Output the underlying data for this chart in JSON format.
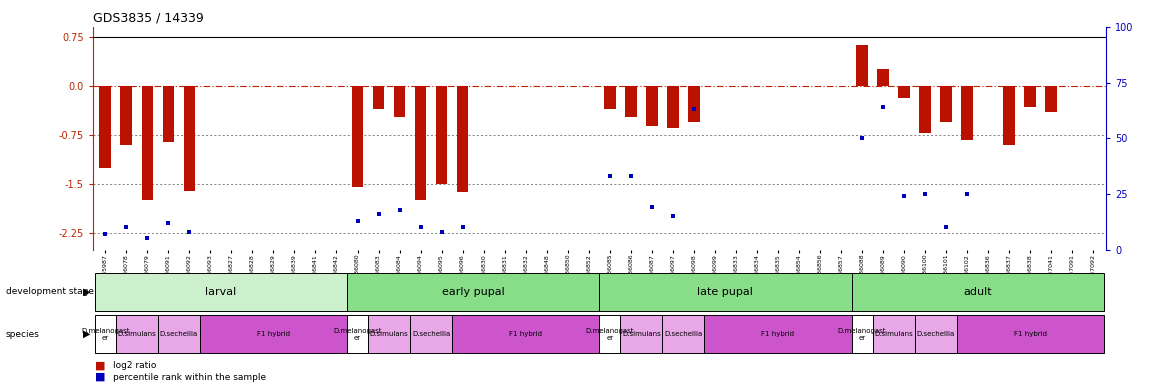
{
  "title": "GDS3835 / 14339",
  "samples": [
    "GSM435987",
    "GSM436078",
    "GSM436079",
    "GSM436091",
    "GSM436092",
    "GSM436093",
    "GSM436827",
    "GSM436828",
    "GSM436829",
    "GSM436839",
    "GSM436841",
    "GSM436842",
    "GSM436080",
    "GSM436083",
    "GSM436084",
    "GSM436094",
    "GSM436095",
    "GSM436096",
    "GSM436830",
    "GSM436831",
    "GSM436832",
    "GSM436848",
    "GSM436850",
    "GSM436852",
    "GSM436085",
    "GSM436086",
    "GSM436087",
    "GSM436097",
    "GSM436098",
    "GSM436099",
    "GSM436833",
    "GSM436834",
    "GSM436835",
    "GSM436854",
    "GSM436856",
    "GSM436857",
    "GSM436088",
    "GSM436089",
    "GSM436090",
    "GSM436100",
    "GSM436101",
    "GSM436102",
    "GSM436836",
    "GSM436837",
    "GSM436838",
    "GSM437041",
    "GSM437091",
    "GSM437092"
  ],
  "log2_ratio": [
    -1.25,
    -0.9,
    -1.75,
    -0.85,
    -1.6,
    0.0,
    0.0,
    0.0,
    0.0,
    0.0,
    0.0,
    0.0,
    -1.55,
    -0.35,
    -0.48,
    -1.75,
    -1.5,
    -1.62,
    0.0,
    0.0,
    0.0,
    0.0,
    0.0,
    0.0,
    -0.35,
    -0.48,
    -0.62,
    -0.65,
    -0.55,
    0.0,
    0.0,
    0.0,
    0.0,
    0.0,
    0.0,
    0.0,
    0.62,
    0.25,
    -0.18,
    -0.72,
    -0.55,
    -0.82,
    0.0,
    -0.9,
    -0.32,
    -0.4,
    0.0,
    0.0
  ],
  "percentile": [
    7,
    10,
    5,
    12,
    8,
    null,
    null,
    null,
    null,
    null,
    null,
    null,
    13,
    16,
    18,
    10,
    8,
    10,
    null,
    null,
    null,
    null,
    null,
    null,
    33,
    33,
    19,
    15,
    63,
    null,
    null,
    null,
    null,
    null,
    null,
    null,
    50,
    64,
    24,
    25,
    10,
    25,
    null,
    null,
    null,
    null,
    null,
    null
  ],
  "dev_stage_groups": [
    {
      "label": "larval",
      "start": 0,
      "end": 11,
      "color": "#d4f0d4"
    },
    {
      "label": "early pupal",
      "start": 12,
      "end": 23,
      "color": "#80d880"
    },
    {
      "label": "late pupal",
      "start": 24,
      "end": 35,
      "color": "#80d880"
    },
    {
      "label": "adult",
      "start": 36,
      "end": 47,
      "color": "#80d880"
    }
  ],
  "species_groups": [
    {
      "label": "D.melanogast\ner",
      "start": 0,
      "end": 0,
      "color": "#ffffff"
    },
    {
      "label": "D.simulans",
      "start": 1,
      "end": 2,
      "color": "#e8a8e8"
    },
    {
      "label": "D.sechellia",
      "start": 3,
      "end": 4,
      "color": "#e8a8e8"
    },
    {
      "label": "F1 hybrid",
      "start": 5,
      "end": 11,
      "color": "#dd66dd"
    },
    {
      "label": "D.melanogast\ner",
      "start": 12,
      "end": 12,
      "color": "#ffffff"
    },
    {
      "label": "D.simulans",
      "start": 13,
      "end": 14,
      "color": "#e8a8e8"
    },
    {
      "label": "D.sechellia",
      "start": 15,
      "end": 16,
      "color": "#e8a8e8"
    },
    {
      "label": "F1 hybrid",
      "start": 17,
      "end": 23,
      "color": "#dd66dd"
    },
    {
      "label": "D.melanogast\ner",
      "start": 24,
      "end": 24,
      "color": "#ffffff"
    },
    {
      "label": "D.simulans",
      "start": 25,
      "end": 26,
      "color": "#e8a8e8"
    },
    {
      "label": "D.sechellia",
      "start": 27,
      "end": 28,
      "color": "#e8a8e8"
    },
    {
      "label": "F1 hybrid",
      "start": 29,
      "end": 35,
      "color": "#dd66dd"
    },
    {
      "label": "D.melanogast\ner",
      "start": 36,
      "end": 36,
      "color": "#ffffff"
    },
    {
      "label": "D.simulans",
      "start": 37,
      "end": 38,
      "color": "#e8a8e8"
    },
    {
      "label": "D.sechellia",
      "start": 39,
      "end": 40,
      "color": "#e8a8e8"
    },
    {
      "label": "F1 hybrid",
      "start": 41,
      "end": 47,
      "color": "#dd66dd"
    }
  ],
  "ylim_left": [
    -2.5,
    0.9
  ],
  "yticks_left": [
    0.75,
    0.0,
    -0.75,
    -1.5,
    -2.25
  ],
  "ylim_right": [
    0,
    100
  ],
  "yticks_right": [
    100,
    75,
    50,
    25,
    0
  ],
  "bar_color": "#bb1100",
  "dot_color": "#0000bb",
  "ref_line_color": "#bb2200",
  "grid_line_color": "#555555"
}
